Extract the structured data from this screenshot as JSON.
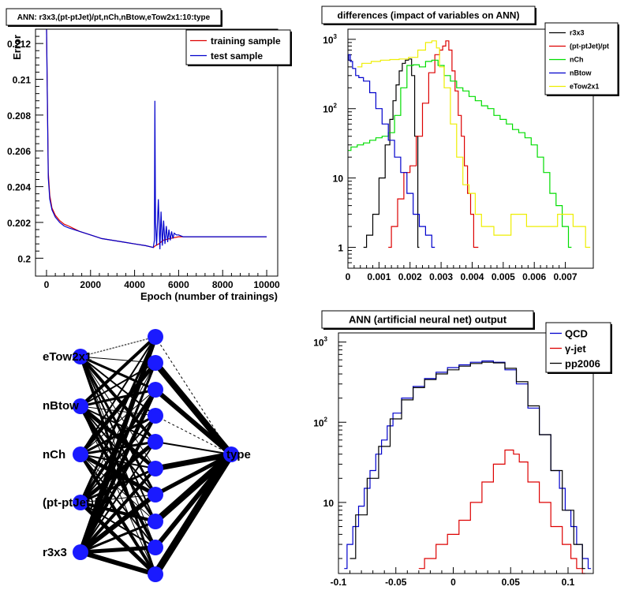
{
  "colors": {
    "red": "#dd0000",
    "blue": "#0000cc",
    "green": "#00dd00",
    "yellow": "#eeee00",
    "black": "#000000",
    "node": "#1a1aff"
  },
  "chart_data": [
    {
      "id": "training-error",
      "type": "line",
      "title": "ANN: r3x3,(pt-ptJet)/pt,nCh,nBtow,eTow2x1:10:type",
      "xlabel": "Epoch (number of trainings)",
      "ylabel": "Error",
      "xlim": [
        -500,
        10500
      ],
      "ylim": [
        0.199,
        0.2128
      ],
      "xticks": [
        0,
        2000,
        4000,
        6000,
        8000,
        10000
      ],
      "xtick_labels": [
        "0",
        "2000",
        "4000",
        "6000",
        "8000",
        "10000"
      ],
      "yticks": [
        0.2,
        0.202,
        0.204,
        0.206,
        0.208,
        0.21,
        0.212
      ],
      "ytick_labels": [
        "0.2",
        "0.202",
        "0.204",
        "0.206",
        "0.208",
        "0.21",
        "0.212"
      ],
      "legend_position": "top-right",
      "series": [
        {
          "name": "training sample",
          "color": "#dd0000",
          "x": [
            0,
            80,
            150,
            250,
            400,
            600,
            800,
            1000,
            1500,
            2000,
            2500,
            3000,
            3500,
            4000,
            4500,
            4850,
            4950,
            5100,
            5300,
            5600,
            6000,
            6500,
            7000,
            8000,
            9000,
            10000
          ],
          "y": [
            0.2128,
            0.2048,
            0.2035,
            0.2028,
            0.2024,
            0.2021,
            0.2019,
            0.2018,
            0.2015,
            0.2013,
            0.2011,
            0.201,
            0.2009,
            0.2008,
            0.2007,
            0.2006,
            0.2007,
            0.2008,
            0.201,
            0.2011,
            0.2012,
            0.2012,
            0.2012,
            0.2012,
            0.2012,
            0.2012
          ]
        },
        {
          "name": "test sample",
          "color": "#0000cc",
          "x": [
            0,
            80,
            150,
            250,
            400,
            600,
            800,
            1000,
            1500,
            2000,
            2500,
            3000,
            3500,
            4000,
            4500,
            4850,
            4900,
            4920,
            4950,
            5000,
            5080,
            5150,
            5200,
            5260,
            5320,
            5380,
            5440,
            5500,
            5560,
            5620,
            5680,
            5740,
            5800,
            5900,
            6000,
            6200,
            6500,
            7000,
            8000,
            9000,
            10000
          ],
          "y": [
            0.2128,
            0.2045,
            0.2033,
            0.2027,
            0.2023,
            0.202,
            0.2018,
            0.2017,
            0.2015,
            0.2013,
            0.2011,
            0.201,
            0.2009,
            0.2008,
            0.2007,
            0.2006,
            0.201,
            0.2088,
            0.202,
            0.2007,
            0.2033,
            0.2005,
            0.2026,
            0.2007,
            0.2021,
            0.2008,
            0.2018,
            0.2009,
            0.2016,
            0.201,
            0.2015,
            0.2011,
            0.2014,
            0.2013,
            0.2013,
            0.2012,
            0.2012,
            0.2012,
            0.2012,
            0.2012,
            0.2012
          ]
        }
      ]
    },
    {
      "id": "differences",
      "type": "line",
      "title": "differences (impact of variables on ANN)",
      "yscale": "log",
      "xlim": [
        0,
        0.0079
      ],
      "ylim": [
        0.5,
        1400
      ],
      "xticks": [
        0,
        0.001,
        0.002,
        0.003,
        0.004,
        0.005,
        0.006,
        0.007
      ],
      "xtick_labels": [
        "0",
        "0.001",
        "0.002",
        "0.003",
        "0.004",
        "0.005",
        "0.006",
        "0.007"
      ],
      "yticks": [
        1,
        10,
        100,
        1000
      ],
      "ytick_labels": [
        "1",
        "10",
        "10²",
        "10³"
      ],
      "legend_position": "top-right",
      "series": [
        {
          "name": "r3x3",
          "color": "#000000",
          "x": [
            0.0005,
            0.0007,
            0.0009,
            0.0011,
            0.0013,
            0.0014,
            0.0015,
            0.0016,
            0.0017,
            0.0018,
            0.0019,
            0.002,
            0.0021,
            0.0022,
            0.0023
          ],
          "y": [
            1,
            1.5,
            3,
            10,
            30,
            70,
            130,
            220,
            350,
            450,
            500,
            520,
            300,
            40,
            1
          ]
        },
        {
          "name": "(pt-ptJet)/pt",
          "color": "#dd0000",
          "x": [
            0.0013,
            0.0015,
            0.0017,
            0.0019,
            0.0021,
            0.0023,
            0.0025,
            0.0027,
            0.0029,
            0.003,
            0.0031,
            0.0032,
            0.0033,
            0.0034,
            0.0035,
            0.0036,
            0.0037,
            0.0038,
            0.0039,
            0.004,
            0.0041,
            0.0042
          ],
          "y": [
            1,
            2,
            5,
            12,
            15,
            40,
            120,
            330,
            600,
            700,
            800,
            950,
            700,
            350,
            180,
            80,
            40,
            15,
            6,
            3,
            1,
            1
          ]
        },
        {
          "name": "nCh",
          "color": "#00dd00",
          "x": [
            0,
            0.0002,
            0.0004,
            0.0006,
            0.0008,
            0.001,
            0.0012,
            0.0014,
            0.0016,
            0.0018,
            0.002,
            0.0022,
            0.0024,
            0.0026,
            0.0028,
            0.003,
            0.0032,
            0.0034,
            0.0036,
            0.0038,
            0.004,
            0.0042,
            0.0044,
            0.0046,
            0.0048,
            0.005,
            0.0052,
            0.0054,
            0.0056,
            0.0058,
            0.006,
            0.0062,
            0.0064,
            0.0066,
            0.0068,
            0.007,
            0.0072
          ],
          "y": [
            25,
            28,
            30,
            32,
            35,
            38,
            40,
            45,
            80,
            200,
            420,
            430,
            400,
            480,
            500,
            420,
            300,
            250,
            200,
            180,
            150,
            130,
            110,
            100,
            80,
            70,
            60,
            50,
            45,
            38,
            30,
            20,
            12,
            6,
            4,
            2,
            1
          ]
        },
        {
          "name": "nBtow",
          "color": "#0000cc",
          "x": [
            0,
            5e-05,
            0.0001,
            0.0002,
            0.0003,
            0.0004,
            0.0006,
            0.0008,
            0.001,
            0.0012,
            0.0014,
            0.0016,
            0.0018,
            0.002,
            0.0022,
            0.0024,
            0.0026,
            0.0028
          ],
          "y": [
            500,
            600,
            480,
            380,
            300,
            280,
            250,
            170,
            100,
            60,
            35,
            20,
            12,
            6,
            3,
            2,
            1.5,
            1
          ]
        },
        {
          "name": "eTow2x1",
          "color": "#eeee00",
          "x": [
            0.0003,
            0.0006,
            0.0009,
            0.0012,
            0.0015,
            0.0018,
            0.0021,
            0.0024,
            0.0026,
            0.0028,
            0.0029,
            0.003,
            0.0032,
            0.0034,
            0.0036,
            0.0038,
            0.004,
            0.0042,
            0.0044,
            0.0046,
            0.0048,
            0.005,
            0.0055,
            0.006,
            0.0065,
            0.007,
            0.0075,
            0.0078
          ],
          "y": [
            400,
            450,
            480,
            500,
            510,
            520,
            550,
            700,
            900,
            950,
            750,
            400,
            200,
            60,
            20,
            8,
            6,
            3,
            2,
            2,
            1.5,
            1.5,
            3,
            2,
            2,
            3,
            2,
            1
          ]
        }
      ]
    },
    {
      "id": "network",
      "type": "diagram",
      "inputs": [
        "eTow2x1",
        "nBtow",
        "nCh",
        "(pt-ptJet)/pt",
        "r3x3"
      ],
      "hidden_count": 10,
      "output": "type"
    },
    {
      "id": "ann-output",
      "type": "line",
      "title": "ANN (artificial neural net) output",
      "yscale": "log",
      "xlim": [
        -0.1,
        0.122
      ],
      "ylim": [
        1.3,
        1300
      ],
      "xticks": [
        -0.1,
        -0.05,
        0,
        0.05,
        0.1
      ],
      "xtick_labels": [
        "-0.1",
        "-0.05",
        "0",
        "0.05",
        "0.1"
      ],
      "yticks": [
        10,
        100,
        1000
      ],
      "ytick_labels": [
        "10",
        "10²",
        "10³"
      ],
      "legend_position": "top-right",
      "series": [
        {
          "name": "QCD",
          "color": "#0000cc",
          "x": [
            -0.095,
            -0.09,
            -0.085,
            -0.08,
            -0.075,
            -0.07,
            -0.065,
            -0.06,
            -0.055,
            -0.05,
            -0.04,
            -0.03,
            -0.02,
            -0.01,
            0,
            0.01,
            0.02,
            0.03,
            0.04,
            0.05,
            0.06,
            0.07,
            0.08,
            0.09,
            0.095,
            0.1,
            0.105,
            0.11,
            0.115,
            0.12
          ],
          "y": [
            1.5,
            3,
            5,
            9,
            15,
            25,
            40,
            60,
            90,
            130,
            200,
            280,
            350,
            420,
            480,
            520,
            560,
            580,
            560,
            450,
            300,
            150,
            70,
            25,
            15,
            8,
            5,
            3,
            2,
            1.5
          ]
        },
        {
          "name": "γ-jet",
          "color": "#dd0000",
          "x": [
            -0.03,
            -0.02,
            -0.01,
            0,
            0.01,
            0.02,
            0.03,
            0.04,
            0.05,
            0.055,
            0.06,
            0.07,
            0.08,
            0.09,
            0.1,
            0.105,
            0.11,
            0.115
          ],
          "y": [
            1.5,
            2,
            3,
            4,
            6,
            10,
            18,
            30,
            45,
            40,
            32,
            18,
            10,
            5,
            3,
            2,
            1.5,
            1.3
          ]
        },
        {
          "name": "pp2006",
          "color": "#000000",
          "x": [
            -0.09,
            -0.08,
            -0.07,
            -0.06,
            -0.05,
            -0.04,
            -0.03,
            -0.02,
            -0.01,
            0,
            0.01,
            0.02,
            0.03,
            0.04,
            0.05,
            0.06,
            0.07,
            0.08,
            0.09,
            0.1,
            0.11,
            0.115
          ],
          "y": [
            2,
            7,
            20,
            50,
            110,
            190,
            270,
            340,
            400,
            450,
            500,
            540,
            560,
            550,
            470,
            320,
            160,
            70,
            25,
            8,
            3,
            1.5
          ]
        }
      ]
    }
  ]
}
